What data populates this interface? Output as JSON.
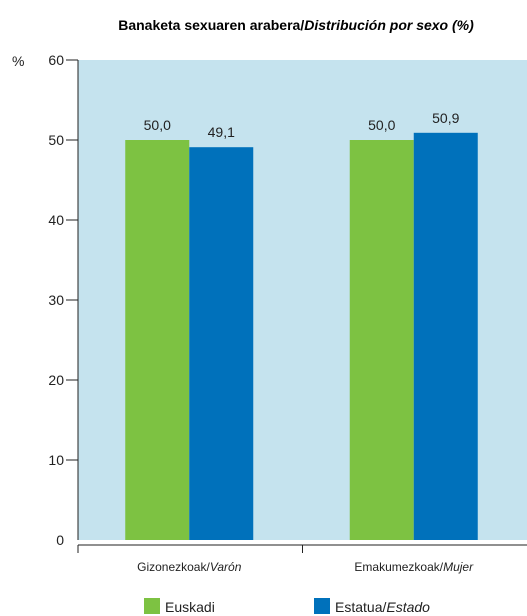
{
  "chart_data": {
    "type": "bar",
    "title": {
      "main": "Banaketa sexuaren arabera/",
      "italic": "Distribución por sexo (%)"
    },
    "ylabel": "%",
    "ylim": [
      0,
      60
    ],
    "yticks": [
      "0",
      "10",
      "20",
      "30",
      "40",
      "50",
      "60"
    ],
    "grid": false,
    "legend_position": "bottom",
    "categories": [
      {
        "main": "Gizonezkoak/",
        "italic": "Varón"
      },
      {
        "main": "Emakumezkoak/",
        "italic": "Mujer"
      }
    ],
    "series": [
      {
        "name": "Euskadi",
        "name_italic": "",
        "color": "#7dc242",
        "values": [
          50.0,
          50.0
        ],
        "labels": [
          "50,0",
          "50,0"
        ]
      },
      {
        "name": "Estatua/",
        "name_italic": "Estado",
        "color": "#0071bb",
        "values": [
          49.1,
          50.9
        ],
        "labels": [
          "49,1",
          "50,9"
        ]
      }
    ],
    "plot_background": "#c5e3ee"
  }
}
